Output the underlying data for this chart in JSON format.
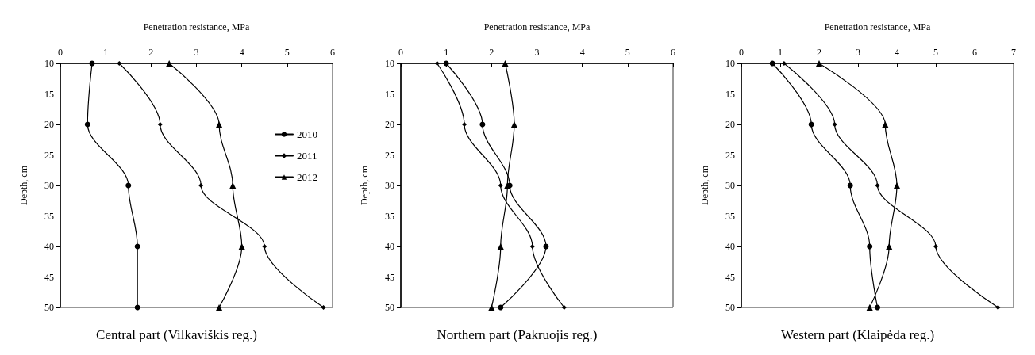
{
  "chart_data": [
    {
      "type": "line",
      "title": "Central part (Vilkaviškis reg.)",
      "xlabel": "Penetration resistance, MPa",
      "ylabel": "Depth, cm",
      "xlim": [
        0,
        6
      ],
      "xticks": [
        0,
        1,
        2,
        3,
        4,
        5,
        6
      ],
      "ylim": [
        50,
        10
      ],
      "yticks": [
        10,
        15,
        20,
        25,
        30,
        35,
        40,
        45,
        50
      ],
      "grid": false,
      "legend": "right",
      "series": [
        {
          "name": "2010",
          "color": "#000000",
          "marker": "circle",
          "x": [
            0.7,
            0.6,
            1.5,
            1.7,
            1.7
          ],
          "values": [
            10,
            20,
            30,
            40,
            50
          ]
        },
        {
          "name": "2011",
          "color": "#000000",
          "marker": "diamond",
          "x": [
            1.3,
            2.2,
            3.1,
            4.5,
            5.8
          ],
          "values": [
            10,
            20,
            30,
            40,
            50
          ]
        },
        {
          "name": "2012",
          "color": "#000000",
          "marker": "triangle",
          "x": [
            2.4,
            3.5,
            3.8,
            4.0,
            3.5
          ],
          "values": [
            10,
            20,
            30,
            40,
            50
          ]
        }
      ]
    },
    {
      "type": "line",
      "title": "Northern part (Pakruojis reg.)",
      "xlabel": "Penetration resistance, MPa",
      "ylabel": "Depth, cm",
      "xlim": [
        0,
        6
      ],
      "xticks": [
        0,
        1,
        2,
        3,
        4,
        5,
        6
      ],
      "ylim": [
        50,
        10
      ],
      "yticks": [
        10,
        15,
        20,
        25,
        30,
        35,
        40,
        45,
        50
      ],
      "grid": false,
      "legend": false,
      "series": [
        {
          "color": "#000000",
          "marker": "circle",
          "x": [
            1.0,
            1.8,
            2.4,
            3.2,
            2.2
          ],
          "values": [
            10,
            20,
            30,
            40,
            50
          ]
        },
        {
          "color": "#000000",
          "marker": "diamond",
          "x": [
            0.8,
            1.4,
            2.2,
            2.9,
            3.6
          ],
          "values": [
            10,
            20,
            30,
            40,
            50
          ]
        },
        {
          "color": "#000000",
          "marker": "triangle",
          "x": [
            2.3,
            2.5,
            2.35,
            2.2,
            2.0
          ],
          "values": [
            10,
            20,
            30,
            40,
            50
          ]
        }
      ]
    },
    {
      "type": "line",
      "title": "Western part (Klaipėda reg.)",
      "xlabel": "Penetration resistance, MPa",
      "ylabel": "Depth, cm",
      "xlim": [
        0,
        7
      ],
      "xticks": [
        0,
        1,
        2,
        3,
        4,
        5,
        6,
        7
      ],
      "ylim": [
        50,
        10
      ],
      "yticks": [
        10,
        15,
        20,
        25,
        30,
        35,
        40,
        45,
        50
      ],
      "grid": false,
      "legend": false,
      "series": [
        {
          "color": "#000000",
          "marker": "circle",
          "x": [
            0.8,
            1.8,
            2.8,
            3.3,
            3.5
          ],
          "values": [
            10,
            20,
            30,
            40,
            50
          ]
        },
        {
          "color": "#000000",
          "marker": "diamond",
          "x": [
            1.1,
            2.4,
            3.5,
            5.0,
            6.6
          ],
          "values": [
            10,
            20,
            30,
            40,
            50
          ]
        },
        {
          "color": "#000000",
          "marker": "triangle",
          "x": [
            2.0,
            3.7,
            4.0,
            3.8,
            3.3
          ],
          "values": [
            10,
            20,
            30,
            40,
            50
          ]
        }
      ]
    }
  ]
}
